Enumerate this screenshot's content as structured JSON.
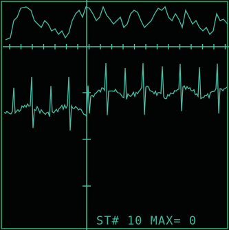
{
  "status_text": "ST# 10 MAX= 0"
}
